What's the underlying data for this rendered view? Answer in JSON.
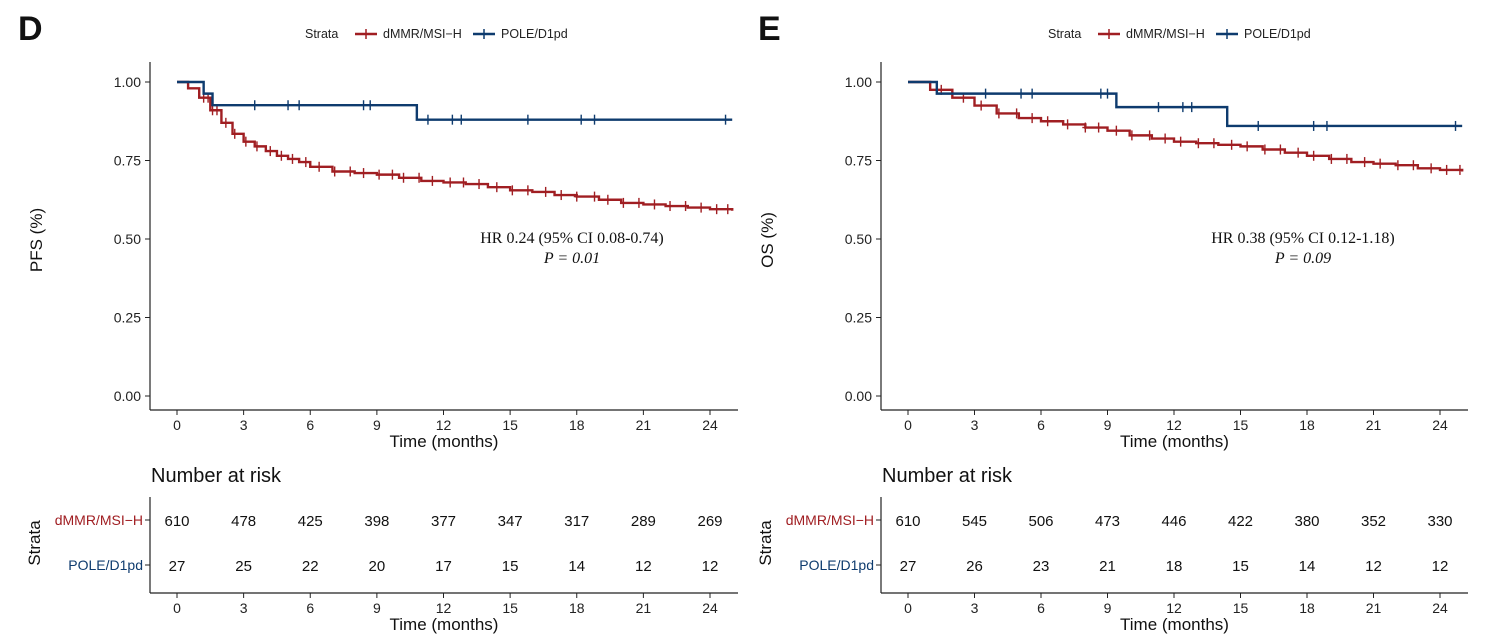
{
  "colors": {
    "series1": "#A01E22",
    "series2": "#0E3B6E",
    "axis": "#222222"
  },
  "chart_data": [
    {
      "type": "line",
      "subtype": "kaplan-meier",
      "panel": "D",
      "legend_title": "Strata",
      "legend_position": "top",
      "ylabel": "PFS (%)",
      "xlabel": "Time (months)",
      "xlim": [
        0,
        25
      ],
      "ylim": [
        0,
        1.05
      ],
      "x_ticks": [
        0,
        3,
        6,
        9,
        12,
        15,
        18,
        21,
        24
      ],
      "y_ticks": [
        "0.00",
        "0.25",
        "0.50",
        "0.75",
        "1.00"
      ],
      "annotation": {
        "line1": "HR 0.24 (95% CI 0.08-0.74)",
        "line2": "P = 0.01"
      },
      "series": [
        {
          "name": "dMMR/MSI−H",
          "color": "#A01E22",
          "x": [
            0,
            0.5,
            1.0,
            1.5,
            2.0,
            2.5,
            3.0,
            3.5,
            4.0,
            4.5,
            5.0,
            5.5,
            6.0,
            7.0,
            8.0,
            9.0,
            10.0,
            11.0,
            12.0,
            13.0,
            14.0,
            15.0,
            16.0,
            17.0,
            18.0,
            19.0,
            20.0,
            21.0,
            22.0,
            23.0,
            24.0,
            25.0
          ],
          "y": [
            1.0,
            0.98,
            0.95,
            0.91,
            0.87,
            0.835,
            0.81,
            0.795,
            0.78,
            0.765,
            0.755,
            0.745,
            0.73,
            0.715,
            0.71,
            0.705,
            0.695,
            0.685,
            0.68,
            0.675,
            0.665,
            0.655,
            0.65,
            0.64,
            0.635,
            0.625,
            0.615,
            0.61,
            0.605,
            0.6,
            0.595,
            0.59
          ],
          "censor_x": [
            1.2,
            1.4,
            1.6,
            1.8,
            2.2,
            2.6,
            3.1,
            3.6,
            4.2,
            4.7,
            5.2,
            5.8,
            6.4,
            7.1,
            7.8,
            8.4,
            9.1,
            9.7,
            10.2,
            10.9,
            11.5,
            12.3,
            12.9,
            13.6,
            14.4,
            15.1,
            15.8,
            16.6,
            17.3,
            18.0,
            18.8,
            19.4,
            20.1,
            20.8,
            21.5,
            22.2,
            22.9,
            23.6,
            24.3,
            24.8
          ]
        },
        {
          "name": "POLE/D1pd",
          "color": "#0E3B6E",
          "x": [
            0,
            1.2,
            1.6,
            10.8,
            25.0
          ],
          "y": [
            1.0,
            0.963,
            0.926,
            0.88,
            0.88
          ],
          "censor_x": [
            3.5,
            5.0,
            5.5,
            8.4,
            8.7,
            11.3,
            12.4,
            12.8,
            15.8,
            18.2,
            18.8,
            24.7
          ]
        }
      ],
      "risk_table": {
        "title": "Number at risk",
        "strata_label": "Strata",
        "xlabel": "Time (months)",
        "rows": [
          {
            "label": "dMMR/MSI−H",
            "values": [
              "610",
              "478",
              "425",
              "398",
              "377",
              "347",
              "317",
              "289",
              "269"
            ]
          },
          {
            "label": "POLE/D1pd",
            "values": [
              "27",
              "25",
              "22",
              "20",
              "17",
              "15",
              "14",
              "12",
              "12"
            ]
          }
        ]
      }
    },
    {
      "type": "line",
      "subtype": "kaplan-meier",
      "panel": "E",
      "legend_title": "Strata",
      "legend_position": "top",
      "ylabel": "OS (%)",
      "xlabel": "Time (months)",
      "xlim": [
        0,
        25
      ],
      "ylim": [
        0,
        1.05
      ],
      "x_ticks": [
        0,
        3,
        6,
        9,
        12,
        15,
        18,
        21,
        24
      ],
      "y_ticks": [
        "0.00",
        "0.25",
        "0.50",
        "0.75",
        "1.00"
      ],
      "annotation": {
        "line1": "HR 0.38 (95% CI 0.12-1.18)",
        "line2": "P = 0.09"
      },
      "series": [
        {
          "name": "dMMR/MSI−H",
          "color": "#A01E22",
          "x": [
            0,
            1.0,
            2.0,
            3.0,
            4.0,
            5.0,
            6.0,
            7.0,
            8.0,
            9.0,
            10.0,
            11.0,
            12.0,
            13.0,
            14.0,
            15.0,
            16.0,
            17.0,
            18.0,
            19.0,
            20.0,
            21.0,
            22.0,
            23.0,
            24.0,
            25.0
          ],
          "y": [
            1.0,
            0.975,
            0.95,
            0.925,
            0.9,
            0.885,
            0.875,
            0.865,
            0.855,
            0.845,
            0.83,
            0.82,
            0.81,
            0.805,
            0.8,
            0.795,
            0.785,
            0.775,
            0.765,
            0.755,
            0.745,
            0.74,
            0.735,
            0.725,
            0.72,
            0.715
          ],
          "censor_x": [
            1.5,
            2.5,
            3.3,
            4.1,
            4.9,
            5.6,
            6.3,
            7.2,
            8.0,
            8.6,
            9.4,
            10.1,
            10.9,
            11.6,
            12.3,
            13.1,
            13.8,
            14.6,
            15.3,
            16.1,
            16.8,
            17.6,
            18.3,
            19.1,
            19.8,
            20.6,
            21.3,
            22.1,
            22.8,
            23.6,
            24.3,
            24.9
          ]
        },
        {
          "name": "POLE/D1pd",
          "color": "#0E3B6E",
          "x": [
            0,
            1.3,
            9.4,
            14.4,
            25.0
          ],
          "y": [
            1.0,
            0.963,
            0.92,
            0.86,
            0.86
          ],
          "censor_x": [
            3.5,
            5.1,
            5.6,
            8.7,
            9.0,
            11.3,
            12.4,
            12.8,
            15.8,
            18.3,
            18.9,
            24.7
          ]
        }
      ],
      "risk_table": {
        "title": "Number at risk",
        "strata_label": "Strata",
        "xlabel": "Time (months)",
        "rows": [
          {
            "label": "dMMR/MSI−H",
            "values": [
              "610",
              "545",
              "506",
              "473",
              "446",
              "422",
              "380",
              "352",
              "330"
            ]
          },
          {
            "label": "POLE/D1pd",
            "values": [
              "27",
              "26",
              "23",
              "21",
              "18",
              "15",
              "14",
              "12",
              "12"
            ]
          }
        ]
      }
    }
  ]
}
